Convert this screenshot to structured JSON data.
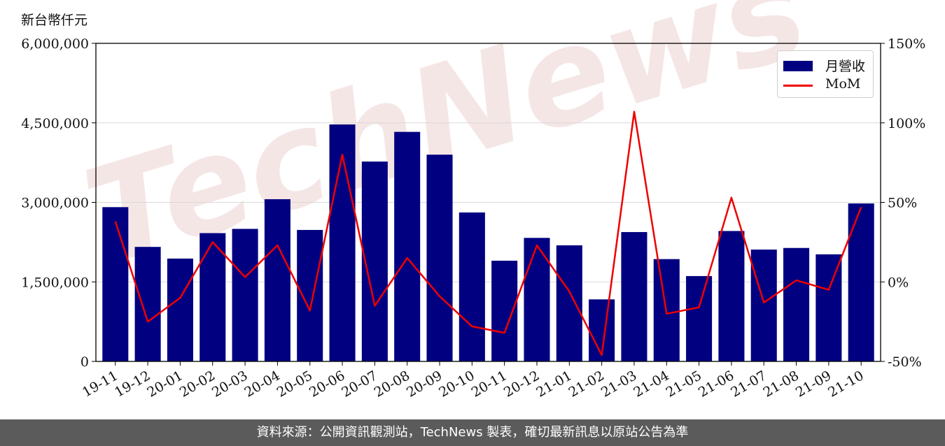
{
  "unit_label": "新台幣仟元",
  "footer_text": "資料來源：公開資訊觀測站，TechNews 製表，確切最新訊息以原站公告為準",
  "watermark": "TechNews",
  "colors": {
    "bar": "#000080",
    "line": "#ee0000",
    "grid": "#d9d9d9",
    "footer_bg": "#5b5b5b",
    "watermark": "#f2dede"
  },
  "chart_data": {
    "type": "bar",
    "categories": [
      "19-11",
      "19-12",
      "20-01",
      "20-02",
      "20-03",
      "20-04",
      "20-05",
      "20-06",
      "20-07",
      "20-08",
      "20-09",
      "20-10",
      "20-11",
      "20-12",
      "21-01",
      "21-02",
      "21-03",
      "21-04",
      "21-05",
      "21-06",
      "21-07",
      "21-08",
      "21-09",
      "21-10"
    ],
    "series": [
      {
        "name": "月營收",
        "axis": "left",
        "type": "bar",
        "values": [
          2910000,
          2160000,
          1940000,
          2420000,
          2500000,
          3060000,
          2480000,
          4470000,
          3770000,
          4330000,
          3900000,
          2810000,
          1900000,
          2330000,
          2190000,
          1170000,
          2440000,
          1930000,
          1610000,
          2460000,
          2110000,
          2140000,
          2020000,
          2980000
        ]
      },
      {
        "name": "MoM",
        "axis": "right",
        "type": "line",
        "unit": "%",
        "values": [
          38,
          -25,
          -10,
          25,
          3,
          23,
          -18,
          80,
          -15,
          15,
          -9,
          -28,
          -32,
          23,
          -6,
          -46,
          107,
          -20,
          -16,
          53,
          -13,
          1,
          -5,
          47
        ]
      }
    ],
    "left_axis": {
      "ylim": [
        0,
        6000000
      ],
      "ticks": [
        "0",
        "1,500,000",
        "3,000,000",
        "4,500,000",
        "6,000,000"
      ]
    },
    "right_axis": {
      "ylim": [
        -50,
        150
      ],
      "ticks": [
        "-50%",
        "0%",
        "50%",
        "100%",
        "150%"
      ]
    },
    "grid": true,
    "legend_position": "top-right"
  }
}
